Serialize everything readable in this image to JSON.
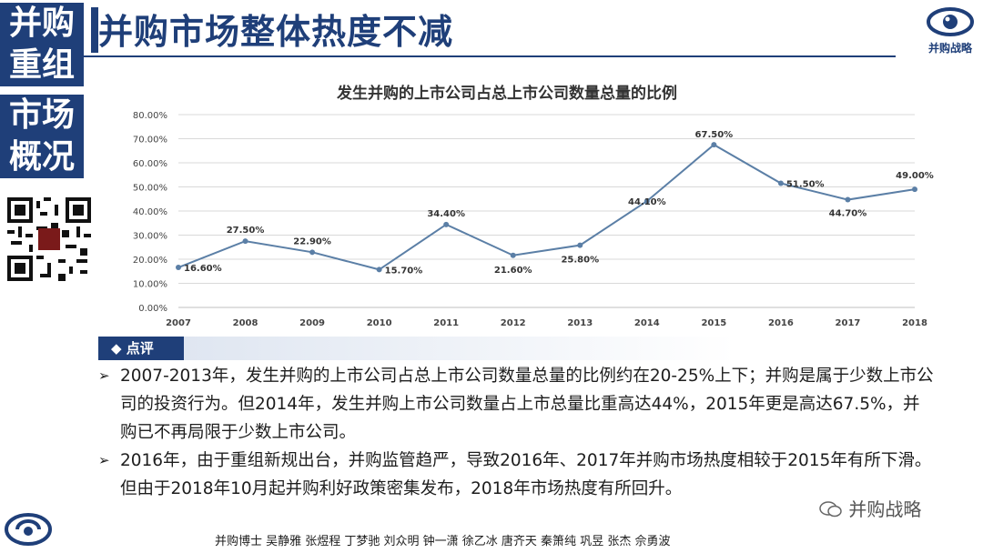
{
  "sidebar": {
    "box1": "并购重组",
    "box1_line1": "并购",
    "box1_line2": "重组",
    "box2_line1": "市场",
    "box2_line2": "概况"
  },
  "header": {
    "title": "并购市场整体热度不减",
    "logo_text": "并购战略"
  },
  "colors": {
    "brand": "#1f3f79",
    "line": "#5b7fa6"
  },
  "chart_data": {
    "type": "line",
    "title": "发生并购的上市公司占总上市公司数量总量的比例",
    "categories": [
      "2007",
      "2008",
      "2009",
      "2010",
      "2011",
      "2012",
      "2013",
      "2014",
      "2015",
      "2016",
      "2017",
      "2018"
    ],
    "values": [
      16.6,
      27.5,
      22.9,
      15.7,
      34.4,
      21.6,
      25.8,
      44.1,
      67.5,
      51.5,
      44.7,
      49.0
    ],
    "data_labels": [
      "16.60%",
      "27.50%",
      "22.90%",
      "15.70%",
      "34.40%",
      "21.60%",
      "25.80%",
      "44.10%",
      "67.50%",
      "51.50%",
      "44.70%",
      "49.00%"
    ],
    "y_ticks": [
      "0.00%",
      "10.00%",
      "20.00%",
      "30.00%",
      "40.00%",
      "50.00%",
      "60.00%",
      "70.00%",
      "80.00%"
    ],
    "ylim": [
      0,
      80
    ],
    "grid": true
  },
  "comment": {
    "tag": "点评",
    "bullets": [
      "2007-2013年，发生并购的上市公司占总上市公司数量总量的比例约在20-25%上下；并购是属于少数上市公司的投资行为。但2014年，发生并购上市公司数量占上市总量比重高达44%，2015年更是高达67.5%，并购已不再局限于少数上市公司。",
      "2016年，由于重组新规出台，并购监管趋严，导致2016年、2017年并购市场热度相较于2015年有所下滑。 但由于2018年10月起并购利好政策密集发布，2018年市场热度有所回升。"
    ]
  },
  "watermark": "并购战略",
  "authors": "并购博士 吴静雅 张煜程 丁梦驰 刘众明 钟一潇 徐乙冰 唐齐天 秦箫纯 巩昱 张杰 佘勇波",
  "icons": {
    "qr": "qr-code-icon",
    "logo": "eye-logo-icon",
    "wechat": "wechat-icon",
    "bottom_logo": "brand-logo-icon"
  }
}
